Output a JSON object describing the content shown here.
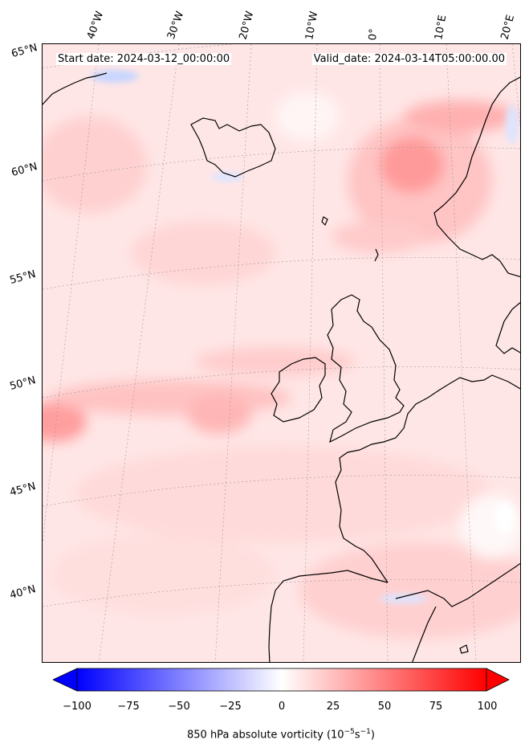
{
  "header": {
    "start_date": "Start date: 2024-03-12_00:00:00",
    "valid_date": "Valid_date: 2024-03-14T05:00:00.00"
  },
  "longitude_labels": [
    "40°W",
    "30°W",
    "20°W",
    "10°W",
    "0°",
    "10°E",
    "20°E"
  ],
  "latitude_labels": [
    "65°N",
    "60°N",
    "55°N",
    "50°N",
    "45°N",
    "40°N"
  ],
  "colorbar": {
    "ticks": [
      "−100",
      "−75",
      "−50",
      "−25",
      "0",
      "25",
      "50",
      "75",
      "100"
    ],
    "label_prefix": "850 hPa absolute vorticity (10",
    "label_exp1": "−5",
    "label_mid": "s",
    "label_exp2": "−1",
    "label_suffix": ")",
    "min": -100,
    "max": 100,
    "extend": "both",
    "colormap": "bwr"
  },
  "colors": {
    "coastline": "#000000",
    "gridline": "#999999",
    "cmap_low": "#0000ff",
    "cmap_mid": "#ffffff",
    "cmap_high": "#ff0000"
  }
}
